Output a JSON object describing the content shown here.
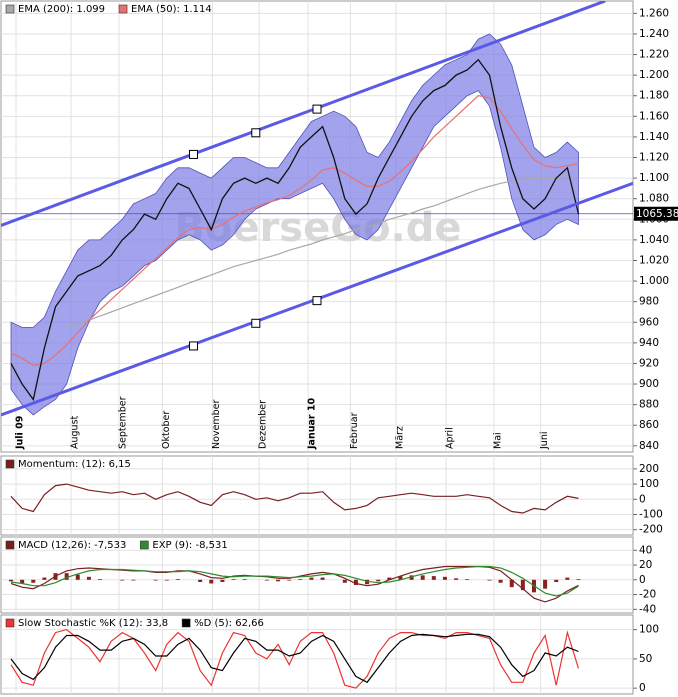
{
  "chart_data": [
    {
      "type": "line",
      "watermark": "BoerseGo.de",
      "x": [
        0,
        1,
        2,
        3,
        4,
        5,
        6,
        7,
        8,
        9,
        10,
        11,
        12,
        13,
        14,
        15,
        16,
        17,
        18,
        19,
        20,
        21,
        22,
        23,
        24,
        25,
        26,
        27,
        28,
        29,
        30,
        31,
        32,
        33,
        34,
        35,
        36,
        37,
        38,
        39,
        40,
        41,
        42,
        43,
        44,
        45,
        46,
        47,
        48,
        49,
        50,
        51
      ],
      "xlim": [
        -0.9,
        55.9
      ],
      "xticks": [
        {
          "value": 0.45,
          "label": "Juli 09"
        },
        {
          "value": 5.4,
          "label": "August"
        },
        {
          "value": 9.7,
          "label": "September"
        },
        {
          "value": 13.6,
          "label": "Oktober"
        },
        {
          "value": 18.1,
          "label": "November"
        },
        {
          "value": 22.3,
          "label": "Dezember"
        },
        {
          "value": 26.7,
          "label": "Januar 10"
        },
        {
          "value": 30.5,
          "label": "Februar"
        },
        {
          "value": 34.6,
          "label": "März"
        },
        {
          "value": 39.1,
          "label": "April"
        },
        {
          "value": 43.4,
          "label": "Mai"
        },
        {
          "value": 47.6,
          "label": "Juni"
        }
      ],
      "ylim": [
        834,
        1272
      ],
      "yticks": [
        840,
        860,
        880,
        900,
        920,
        940,
        960,
        980,
        {
          "value": 1000,
          "label": "1.000"
        },
        {
          "value": 1020,
          "label": "1.020"
        },
        {
          "value": 1040,
          "label": "1.040"
        },
        {
          "value": 1060,
          "label": "1.060"
        },
        {
          "value": 1080,
          "label": "1.080"
        },
        {
          "value": 1100,
          "label": "1.100"
        },
        {
          "value": 1120,
          "label": "1.120"
        },
        {
          "value": 1140,
          "label": "1.140"
        },
        {
          "value": 1160,
          "label": "1.160"
        },
        {
          "value": 1180,
          "label": "1.180"
        },
        {
          "value": 1200,
          "label": "1.200"
        },
        {
          "value": 1220,
          "label": "1.220"
        },
        {
          "value": 1240,
          "label": "1.240"
        },
        {
          "value": 1260,
          "label": "1.260"
        }
      ],
      "grid": true,
      "band": {
        "color": "#7c7ce6",
        "upper": [
          960,
          955,
          955,
          965,
          990,
          1010,
          1030,
          1040,
          1040,
          1050,
          1060,
          1075,
          1080,
          1085,
          1100,
          1110,
          1110,
          1105,
          1100,
          1110,
          1120,
          1120,
          1115,
          1110,
          1110,
          1125,
          1140,
          1155,
          1160,
          1165,
          1160,
          1150,
          1125,
          1120,
          1135,
          1155,
          1175,
          1190,
          1200,
          1210,
          1215,
          1220,
          1235,
          1240,
          1230,
          1210,
          1170,
          1130,
          1120,
          1125,
          1135,
          1125
        ],
        "lower": [
          895,
          880,
          870,
          878,
          885,
          900,
          935,
          960,
          980,
          990,
          995,
          1005,
          1015,
          1020,
          1030,
          1040,
          1045,
          1040,
          1030,
          1035,
          1045,
          1060,
          1070,
          1075,
          1080,
          1080,
          1085,
          1090,
          1095,
          1080,
          1060,
          1045,
          1040,
          1050,
          1070,
          1090,
          1110,
          1130,
          1150,
          1160,
          1170,
          1180,
          1185,
          1170,
          1130,
          1080,
          1050,
          1040,
          1045,
          1055,
          1060,
          1055
        ]
      },
      "series": [
        {
          "name": "EMA (200): 1.099",
          "color": "#a8a8a8",
          "values": [
            null,
            null,
            null,
            null,
            null,
            955,
            958,
            962,
            966,
            970,
            974,
            978,
            982,
            986,
            990,
            994,
            998,
            1002,
            1006,
            1010,
            1014,
            1017,
            1020,
            1023,
            1026,
            1030,
            1033,
            1036,
            1040,
            1043,
            1046,
            1050,
            1053,
            1056,
            1060,
            1063,
            1066,
            1070,
            1073,
            1077,
            1081,
            1085,
            1089,
            1092,
            1095,
            1097,
            1099,
            1100,
            1100,
            1099,
            1099,
            1099
          ]
        },
        {
          "name": "EMA (50): 1.114",
          "color": "#e87070",
          "values": [
            930,
            925,
            918,
            920,
            928,
            938,
            950,
            962,
            972,
            982,
            992,
            1002,
            1012,
            1022,
            1032,
            1042,
            1050,
            1052,
            1050,
            1055,
            1062,
            1068,
            1072,
            1076,
            1079,
            1083,
            1090,
            1098,
            1108,
            1110,
            1105,
            1098,
            1092,
            1092,
            1097,
            1106,
            1116,
            1128,
            1140,
            1150,
            1160,
            1170,
            1180,
            1178,
            1165,
            1148,
            1132,
            1118,
            1112,
            1110,
            1112,
            1114
          ]
        },
        {
          "color": "#111111",
          "values": [
            920,
            900,
            885,
            935,
            975,
            990,
            1005,
            1010,
            1015,
            1025,
            1040,
            1050,
            1065,
            1060,
            1080,
            1095,
            1090,
            1070,
            1050,
            1080,
            1095,
            1100,
            1095,
            1100,
            1095,
            1110,
            1130,
            1140,
            1150,
            1120,
            1080,
            1065,
            1075,
            1100,
            1120,
            1140,
            1160,
            1175,
            1185,
            1190,
            1200,
            1205,
            1215,
            1200,
            1150,
            1110,
            1080,
            1070,
            1080,
            1100,
            1110,
            1065
          ]
        }
      ],
      "channels": [
        {
          "color": "#5a5ae6",
          "start": [
            -0.9,
            1054
          ],
          "end": [
            53.4,
            1272
          ],
          "markers": [
            [
              16.4,
              1123
            ],
            [
              22,
              1144
            ],
            [
              27.5,
              1167
            ]
          ]
        },
        {
          "color": "#5a5ae6",
          "start": [
            -0.9,
            870
          ],
          "end": [
            55.9,
            1095
          ],
          "markers": [
            [
              16.4,
              937
            ],
            [
              22,
              959
            ],
            [
              27.5,
              981
            ]
          ]
        }
      ],
      "last": 1065.38
    },
    {
      "type": "line",
      "x": [
        0,
        1,
        2,
        3,
        4,
        5,
        6,
        7,
        8,
        9,
        10,
        11,
        12,
        13,
        14,
        15,
        16,
        17,
        18,
        19,
        20,
        21,
        22,
        23,
        24,
        25,
        26,
        27,
        28,
        29,
        30,
        31,
        32,
        33,
        34,
        35,
        36,
        37,
        38,
        39,
        40,
        41,
        42,
        43,
        44,
        45,
        46,
        47,
        48,
        49,
        50,
        51
      ],
      "xlim": [
        -0.9,
        55.9
      ],
      "ylim": [
        -235,
        285
      ],
      "yticks": [
        200,
        100,
        0,
        -100,
        -200
      ],
      "grid": true,
      "series": [
        {
          "name": "Momentum: (12): 6,15",
          "color": "#7a1f1f",
          "values": [
            20,
            -60,
            -80,
            30,
            90,
            100,
            80,
            60,
            50,
            40,
            50,
            30,
            40,
            0,
            30,
            50,
            20,
            -20,
            -40,
            30,
            50,
            30,
            0,
            10,
            -10,
            10,
            40,
            40,
            50,
            -20,
            -70,
            -60,
            -40,
            10,
            20,
            30,
            40,
            30,
            20,
            20,
            20,
            30,
            20,
            10,
            -40,
            -80,
            -90,
            -60,
            -70,
            -20,
            20,
            6.15
          ]
        }
      ]
    },
    {
      "type": "line",
      "x": [
        0,
        1,
        2,
        3,
        4,
        5,
        6,
        7,
        8,
        9,
        10,
        11,
        12,
        13,
        14,
        15,
        16,
        17,
        18,
        19,
        20,
        21,
        22,
        23,
        24,
        25,
        26,
        27,
        28,
        29,
        30,
        31,
        32,
        33,
        34,
        35,
        36,
        37,
        38,
        39,
        40,
        41,
        42,
        43,
        44,
        45,
        46,
        47,
        48,
        49,
        50,
        51
      ],
      "xlim": [
        -0.9,
        55.9
      ],
      "ylim": [
        -45,
        58
      ],
      "yticks": [
        40,
        20,
        0,
        -20,
        -40
      ],
      "grid": true,
      "series": [
        {
          "kind": "bar",
          "color": "#8a2020",
          "values": [
            -2,
            -5,
            -4,
            3,
            9,
            9,
            7,
            4,
            1,
            0,
            -1,
            -1,
            0,
            -1,
            -1,
            1,
            0,
            -3,
            -5,
            -3,
            1,
            1,
            0,
            -1,
            -2,
            -1,
            1,
            3,
            3,
            0,
            -4,
            -7,
            -6,
            -2,
            3,
            5,
            6,
            6,
            5,
            4,
            2,
            1,
            0,
            -1,
            -4,
            -10,
            -14,
            -17,
            -12,
            -3,
            3,
            1
          ]
        },
        {
          "name": "MACD (12,26): -7,533",
          "color": "#7a1f1f",
          "values": [
            -5,
            -10,
            -12,
            -5,
            5,
            12,
            15,
            16,
            15,
            14,
            13,
            12,
            12,
            10,
            10,
            12,
            12,
            8,
            3,
            2,
            5,
            6,
            5,
            4,
            2,
            2,
            5,
            8,
            10,
            8,
            2,
            -5,
            -8,
            -6,
            0,
            5,
            10,
            14,
            16,
            18,
            18,
            18,
            18,
            17,
            12,
            0,
            -12,
            -25,
            -30,
            -25,
            -15,
            -7.533
          ]
        },
        {
          "name": "EXP (9): -8,531",
          "color": "#2e8b2e",
          "values": [
            -3,
            -5,
            -8,
            -8,
            -4,
            3,
            8,
            12,
            14,
            14,
            14,
            13,
            12,
            11,
            11,
            11,
            12,
            11,
            8,
            5,
            4,
            5,
            5,
            5,
            4,
            3,
            4,
            5,
            7,
            8,
            6,
            2,
            -2,
            -4,
            -3,
            0,
            4,
            8,
            11,
            14,
            16,
            17,
            18,
            18,
            16,
            10,
            2,
            -8,
            -18,
            -22,
            -18,
            -8.531
          ]
        }
      ]
    },
    {
      "type": "line",
      "x": [
        0,
        1,
        2,
        3,
        4,
        5,
        6,
        7,
        8,
        9,
        10,
        11,
        12,
        13,
        14,
        15,
        16,
        17,
        18,
        19,
        20,
        21,
        22,
        23,
        24,
        25,
        26,
        27,
        28,
        29,
        30,
        31,
        32,
        33,
        34,
        35,
        36,
        37,
        38,
        39,
        40,
        41,
        42,
        43,
        44,
        45,
        46,
        47,
        48,
        49,
        50,
        51
      ],
      "xlim": [
        -0.9,
        55.9
      ],
      "ylim": [
        -10,
        125
      ],
      "yticks": [
        100,
        50,
        0
      ],
      "grid": true,
      "series": [
        {
          "name": "Slow Stochastic %K (12): 33,8",
          "color": "#ee3333",
          "values": [
            40,
            10,
            5,
            60,
            95,
            100,
            85,
            70,
            45,
            80,
            95,
            85,
            60,
            30,
            75,
            95,
            80,
            30,
            5,
            60,
            95,
            90,
            60,
            50,
            75,
            40,
            80,
            95,
            95,
            60,
            5,
            0,
            20,
            60,
            85,
            95,
            95,
            90,
            90,
            85,
            95,
            95,
            90,
            85,
            40,
            10,
            10,
            60,
            90,
            5,
            95,
            33.8
          ]
        },
        {
          "name": "%D (5): 62,66",
          "color": "#000000",
          "values": [
            50,
            25,
            15,
            35,
            70,
            90,
            90,
            80,
            65,
            65,
            80,
            85,
            75,
            55,
            55,
            75,
            85,
            65,
            35,
            30,
            60,
            85,
            80,
            65,
            65,
            55,
            60,
            80,
            90,
            80,
            50,
            20,
            10,
            35,
            60,
            80,
            90,
            92,
            90,
            88,
            90,
            92,
            92,
            88,
            70,
            40,
            20,
            30,
            60,
            55,
            70,
            62.66
          ]
        }
      ]
    }
  ]
}
